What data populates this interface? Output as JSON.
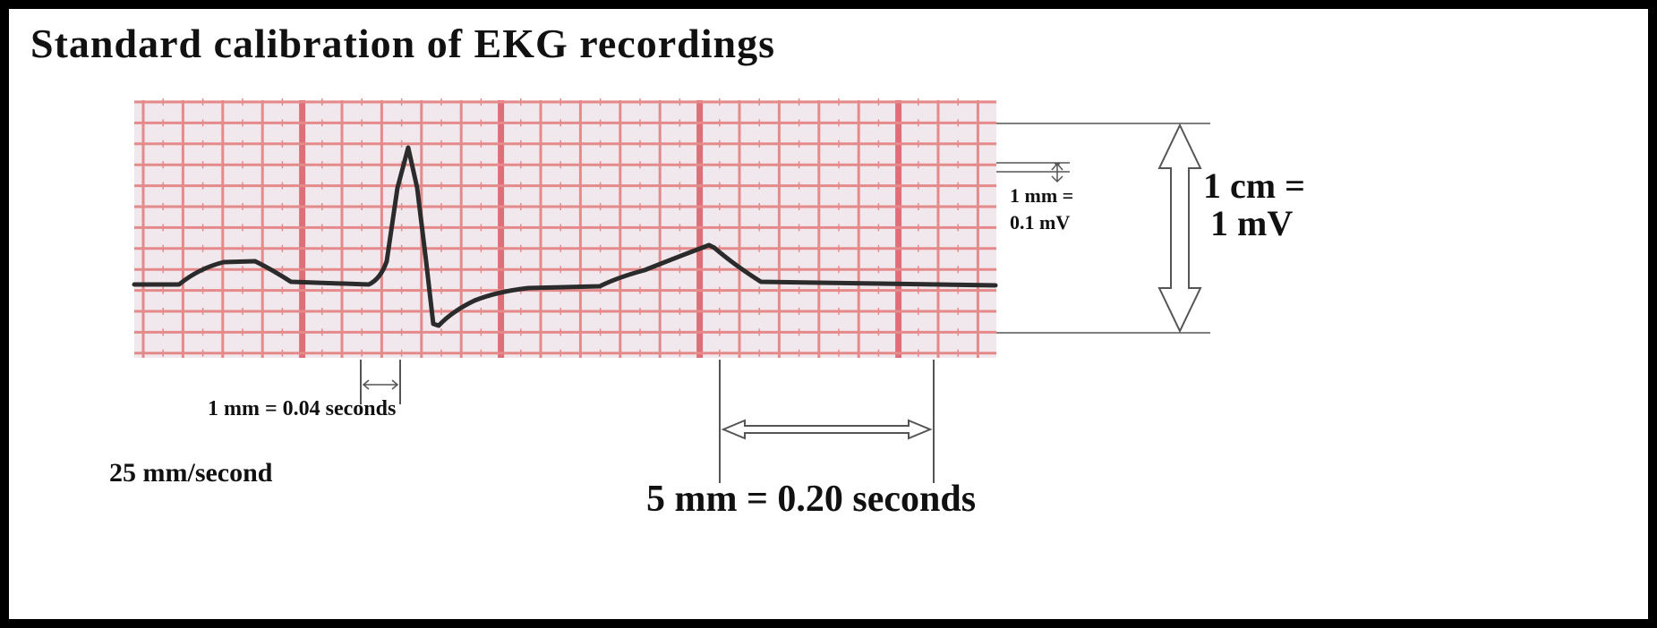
{
  "title": "Standard calibration of EKG recordings",
  "labels": {
    "voltage_small_line1": "1 mm =",
    "voltage_small_line2": "0.1 mV",
    "voltage_large_line1": "1 cm =",
    "voltage_large_line2": "1 mV",
    "time_small": "1 mm =  0.04 seconds",
    "paper_speed": "25 mm/second",
    "time_large": "5 mm = 0.20 seconds"
  },
  "colors": {
    "frame": "#000000",
    "background": "#ffffff",
    "grid_paper": "#f1e8ee",
    "grid_line": "#e58a8a",
    "grid_line_major": "#de6f78",
    "trace": "#2b2b2b",
    "arrow": "#555555"
  }
}
